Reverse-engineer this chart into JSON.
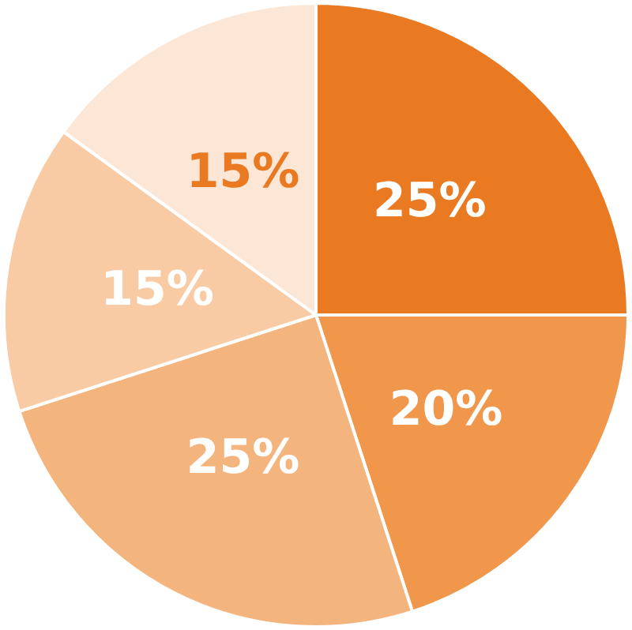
{
  "chart_data": {
    "type": "pie",
    "categories": [
      null,
      null,
      null,
      null,
      null
    ],
    "values": [
      25,
      20,
      25,
      15,
      15
    ],
    "colors": [
      "#e97a22",
      "#f0974c",
      "#f4b47e",
      "#f8cba5",
      "#fce6d6"
    ],
    "value_labels": [
      "25%",
      "20%",
      "25%",
      "15%",
      "15%"
    ]
  }
}
